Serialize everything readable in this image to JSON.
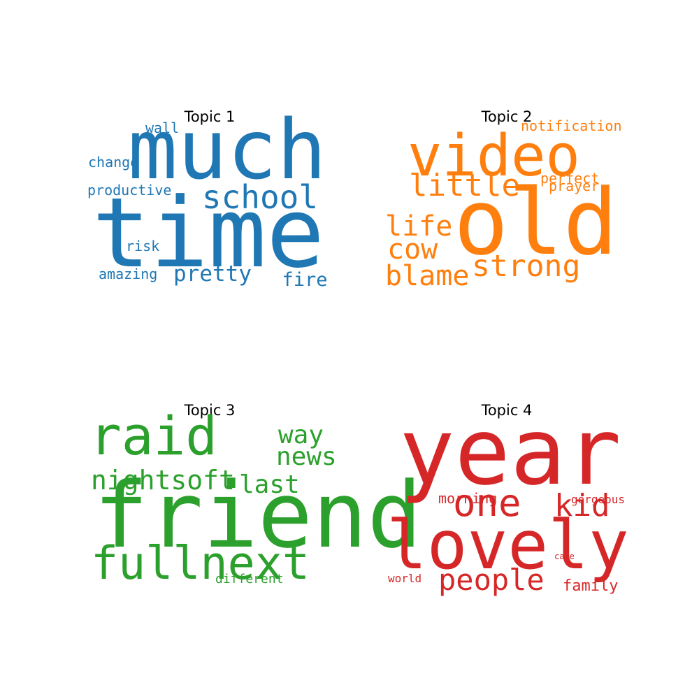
{
  "chart_data": {
    "type": "wordcloud",
    "panels": [
      {
        "title": "Topic 1",
        "color": "#1f77b4",
        "words": [
          {
            "text": "much"
          },
          {
            "text": "time"
          },
          {
            "text": "school"
          },
          {
            "text": "pretty"
          },
          {
            "text": "fire"
          },
          {
            "text": "wall"
          },
          {
            "text": "change"
          },
          {
            "text": "productive"
          },
          {
            "text": "risk"
          },
          {
            "text": "amazing"
          }
        ]
      },
      {
        "title": "Topic 2",
        "color": "#ff7f0e",
        "words": [
          {
            "text": "video"
          },
          {
            "text": "old"
          },
          {
            "text": "little"
          },
          {
            "text": "strong"
          },
          {
            "text": "blame"
          },
          {
            "text": "life"
          },
          {
            "text": "cow"
          },
          {
            "text": "notification"
          },
          {
            "text": "perfect"
          },
          {
            "text": "prayer"
          }
        ]
      },
      {
        "title": "Topic 3",
        "color": "#2ca02c",
        "words": [
          {
            "text": "raid"
          },
          {
            "text": "friend"
          },
          {
            "text": "fullnext"
          },
          {
            "text": "nightsoft"
          },
          {
            "text": "news"
          },
          {
            "text": "way"
          },
          {
            "text": "last"
          },
          {
            "text": "different"
          }
        ]
      },
      {
        "title": "Topic 4",
        "color": "#d62728",
        "words": [
          {
            "text": "year"
          },
          {
            "text": "lovely"
          },
          {
            "text": "one"
          },
          {
            "text": "kid"
          },
          {
            "text": "people"
          },
          {
            "text": "morning"
          },
          {
            "text": "gorgeous"
          },
          {
            "text": "family"
          },
          {
            "text": "world"
          },
          {
            "text": "care"
          }
        ]
      }
    ]
  }
}
